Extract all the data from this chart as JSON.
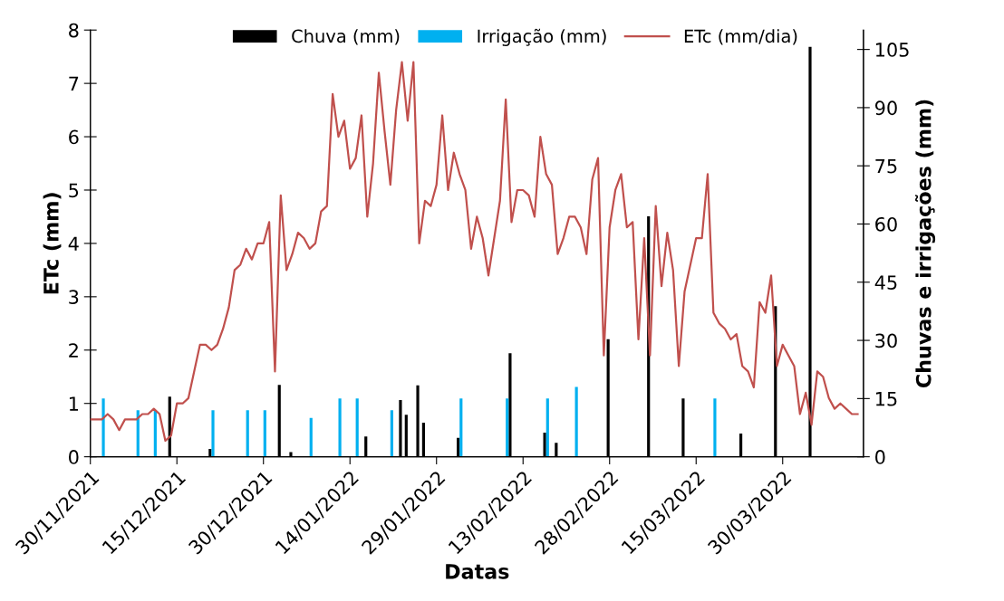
{
  "chart_data": {
    "type": "bar",
    "xlabel": "Datas",
    "ylabel": "ETc (mm)",
    "y2label": "Chuvas e irrigações (mm)",
    "xlim": [
      "2021-11-30",
      "2022-04-13"
    ],
    "xticks": [
      {
        "value": "2021-11-30",
        "label": "30/11/2021"
      },
      {
        "value": "2021-12-15",
        "label": "15/12/2021"
      },
      {
        "value": "2021-12-30",
        "label": "30/12/2021"
      },
      {
        "value": "2022-01-14",
        "label": "14/01/2022"
      },
      {
        "value": "2022-01-29",
        "label": "29/01/2022"
      },
      {
        "value": "2022-02-13",
        "label": "13/02/2022"
      },
      {
        "value": "2022-02-28",
        "label": "28/02/2022"
      },
      {
        "value": "2022-03-15",
        "label": "15/03/2022"
      },
      {
        "value": "2022-03-30",
        "label": "30/03/2022"
      }
    ],
    "ylim": [
      0,
      8
    ],
    "yticks": [
      0,
      1,
      2,
      3,
      4,
      5,
      6,
      7,
      8
    ],
    "y2lim": [
      0,
      110
    ],
    "y2ticks": [
      0,
      15,
      30,
      45,
      60,
      75,
      90,
      105
    ],
    "grid": false,
    "legend": "top",
    "series": [
      {
        "name": "Chuva (mm)",
        "axis": "y2",
        "color": "#000000",
        "x": [
          "2021-12-14",
          "2021-12-21",
          "2022-01-02",
          "2022-01-04",
          "2022-01-17",
          "2022-01-23",
          "2022-01-24",
          "2022-01-26",
          "2022-01-27",
          "2022-02-02",
          "2022-02-11",
          "2022-02-17",
          "2022-02-19",
          "2022-02-28",
          "2022-03-07",
          "2022-03-13",
          "2022-03-23",
          "2022-03-29",
          "2022-04-04"
        ],
        "values": [
          15.5,
          2,
          18.5,
          1.2,
          5.2,
          14.6,
          10.8,
          18.4,
          8.8,
          4.9,
          26.7,
          6.2,
          3.6,
          30.3,
          62,
          15,
          6,
          38.8,
          105.7
        ]
      },
      {
        "name": "Irrigação (mm)",
        "axis": "y2",
        "color": "#00b0f0",
        "x": [
          "2021-12-02",
          "2021-12-08",
          "2021-12-11",
          "2021-12-21",
          "2021-12-27",
          "2021-12-30",
          "2022-01-07",
          "2022-01-12",
          "2022-01-15",
          "2022-01-21",
          "2022-02-02",
          "2022-02-10",
          "2022-02-17",
          "2022-02-22",
          "2022-03-18"
        ],
        "values": [
          15,
          12,
          12,
          12,
          12,
          12,
          10,
          15,
          15,
          12,
          15,
          15,
          15,
          18,
          15
        ]
      },
      {
        "name": "ETc (mm/dia)",
        "type": "line",
        "axis": "y",
        "color": "#c0504d",
        "line_style": "solid",
        "x": [
          "2021-11-30",
          "2021-12-01",
          "2021-12-02",
          "2021-12-03",
          "2021-12-04",
          "2021-12-05",
          "2021-12-06",
          "2021-12-07",
          "2021-12-08",
          "2021-12-09",
          "2021-12-10",
          "2021-12-11",
          "2021-12-12",
          "2021-12-13",
          "2021-12-14",
          "2021-12-15",
          "2021-12-16",
          "2021-12-17",
          "2021-12-18",
          "2021-12-19",
          "2021-12-20",
          "2021-12-21",
          "2021-12-22",
          "2021-12-23",
          "2021-12-24",
          "2021-12-25",
          "2021-12-26",
          "2021-12-27",
          "2021-12-28",
          "2021-12-29",
          "2021-12-30",
          "2021-12-31",
          "2022-01-01",
          "2022-01-02",
          "2022-01-03",
          "2022-01-04",
          "2022-01-05",
          "2022-01-06",
          "2022-01-07",
          "2022-01-08",
          "2022-01-09",
          "2022-01-10",
          "2022-01-11",
          "2022-01-12",
          "2022-01-13",
          "2022-01-14",
          "2022-01-15",
          "2022-01-16",
          "2022-01-17",
          "2022-01-18",
          "2022-01-19",
          "2022-01-20",
          "2022-01-21",
          "2022-01-22",
          "2022-01-23",
          "2022-01-24",
          "2022-01-25",
          "2022-01-26",
          "2022-01-27",
          "2022-01-28",
          "2022-01-29",
          "2022-01-30",
          "2022-01-31",
          "2022-02-01",
          "2022-02-02",
          "2022-02-03",
          "2022-02-04",
          "2022-02-05",
          "2022-02-06",
          "2022-02-07",
          "2022-02-08",
          "2022-02-09",
          "2022-02-10",
          "2022-02-11",
          "2022-02-12",
          "2022-02-13",
          "2022-02-14",
          "2022-02-15",
          "2022-02-16",
          "2022-02-17",
          "2022-02-18",
          "2022-02-19",
          "2022-02-20",
          "2022-02-21",
          "2022-02-22",
          "2022-02-23",
          "2022-02-24",
          "2022-02-25",
          "2022-02-26",
          "2022-02-27",
          "2022-02-28",
          "2022-03-01",
          "2022-03-02",
          "2022-03-03",
          "2022-03-04",
          "2022-03-05",
          "2022-03-06",
          "2022-03-07",
          "2022-03-08",
          "2022-03-09",
          "2022-03-10",
          "2022-03-11",
          "2022-03-12",
          "2022-03-13",
          "2022-03-14",
          "2022-03-15",
          "2022-03-16",
          "2022-03-17",
          "2022-03-18",
          "2022-03-19",
          "2022-03-20",
          "2022-03-21",
          "2022-03-22",
          "2022-03-23",
          "2022-03-24",
          "2022-03-25",
          "2022-03-26",
          "2022-03-27",
          "2022-03-28",
          "2022-03-29",
          "2022-03-30",
          "2022-03-31",
          "2022-04-01",
          "2022-04-02",
          "2022-04-03",
          "2022-04-04",
          "2022-04-05",
          "2022-04-06",
          "2022-04-07",
          "2022-04-08",
          "2022-04-09",
          "2022-04-10",
          "2022-04-11",
          "2022-04-12"
        ],
        "values": [
          0.7,
          0.7,
          0.7,
          0.8,
          0.7,
          0.5,
          0.7,
          0.7,
          0.7,
          0.8,
          0.8,
          0.9,
          0.8,
          0.3,
          0.4,
          1.0,
          1.0,
          1.1,
          1.6,
          2.1,
          2.1,
          2.0,
          2.1,
          2.4,
          2.8,
          3.5,
          3.6,
          3.9,
          3.7,
          4.0,
          4.0,
          4.4,
          1.6,
          4.9,
          3.5,
          3.8,
          4.2,
          4.1,
          3.9,
          4.0,
          4.6,
          4.7,
          6.8,
          6.0,
          6.3,
          5.4,
          5.6,
          6.4,
          4.5,
          5.5,
          7.2,
          6.1,
          5.1,
          6.5,
          7.4,
          6.3,
          7.4,
          4.0,
          4.8,
          4.7,
          5.1,
          6.4,
          5.0,
          5.7,
          5.3,
          5.0,
          3.9,
          4.5,
          4.1,
          3.4,
          4.1,
          4.8,
          6.7,
          4.4,
          5.0,
          5.0,
          4.9,
          4.5,
          6.0,
          5.3,
          5.1,
          3.8,
          4.1,
          4.5,
          4.5,
          4.3,
          3.8,
          5.2,
          5.6,
          1.9,
          4.3,
          5.0,
          5.3,
          4.3,
          4.4,
          2.2,
          4.1,
          1.9,
          4.7,
          3.2,
          4.2,
          3.5,
          1.7,
          3.1,
          3.6,
          4.1,
          4.1,
          5.3,
          2.7,
          2.5,
          2.4,
          2.2,
          2.3,
          1.7,
          1.6,
          1.3,
          2.9,
          2.7,
          3.4,
          1.7,
          2.1,
          1.9,
          1.7,
          0.8,
          1.2,
          0.6,
          1.6,
          1.5,
          1.1,
          0.9,
          1.0,
          0.9,
          0.8,
          0.8
        ]
      }
    ]
  }
}
